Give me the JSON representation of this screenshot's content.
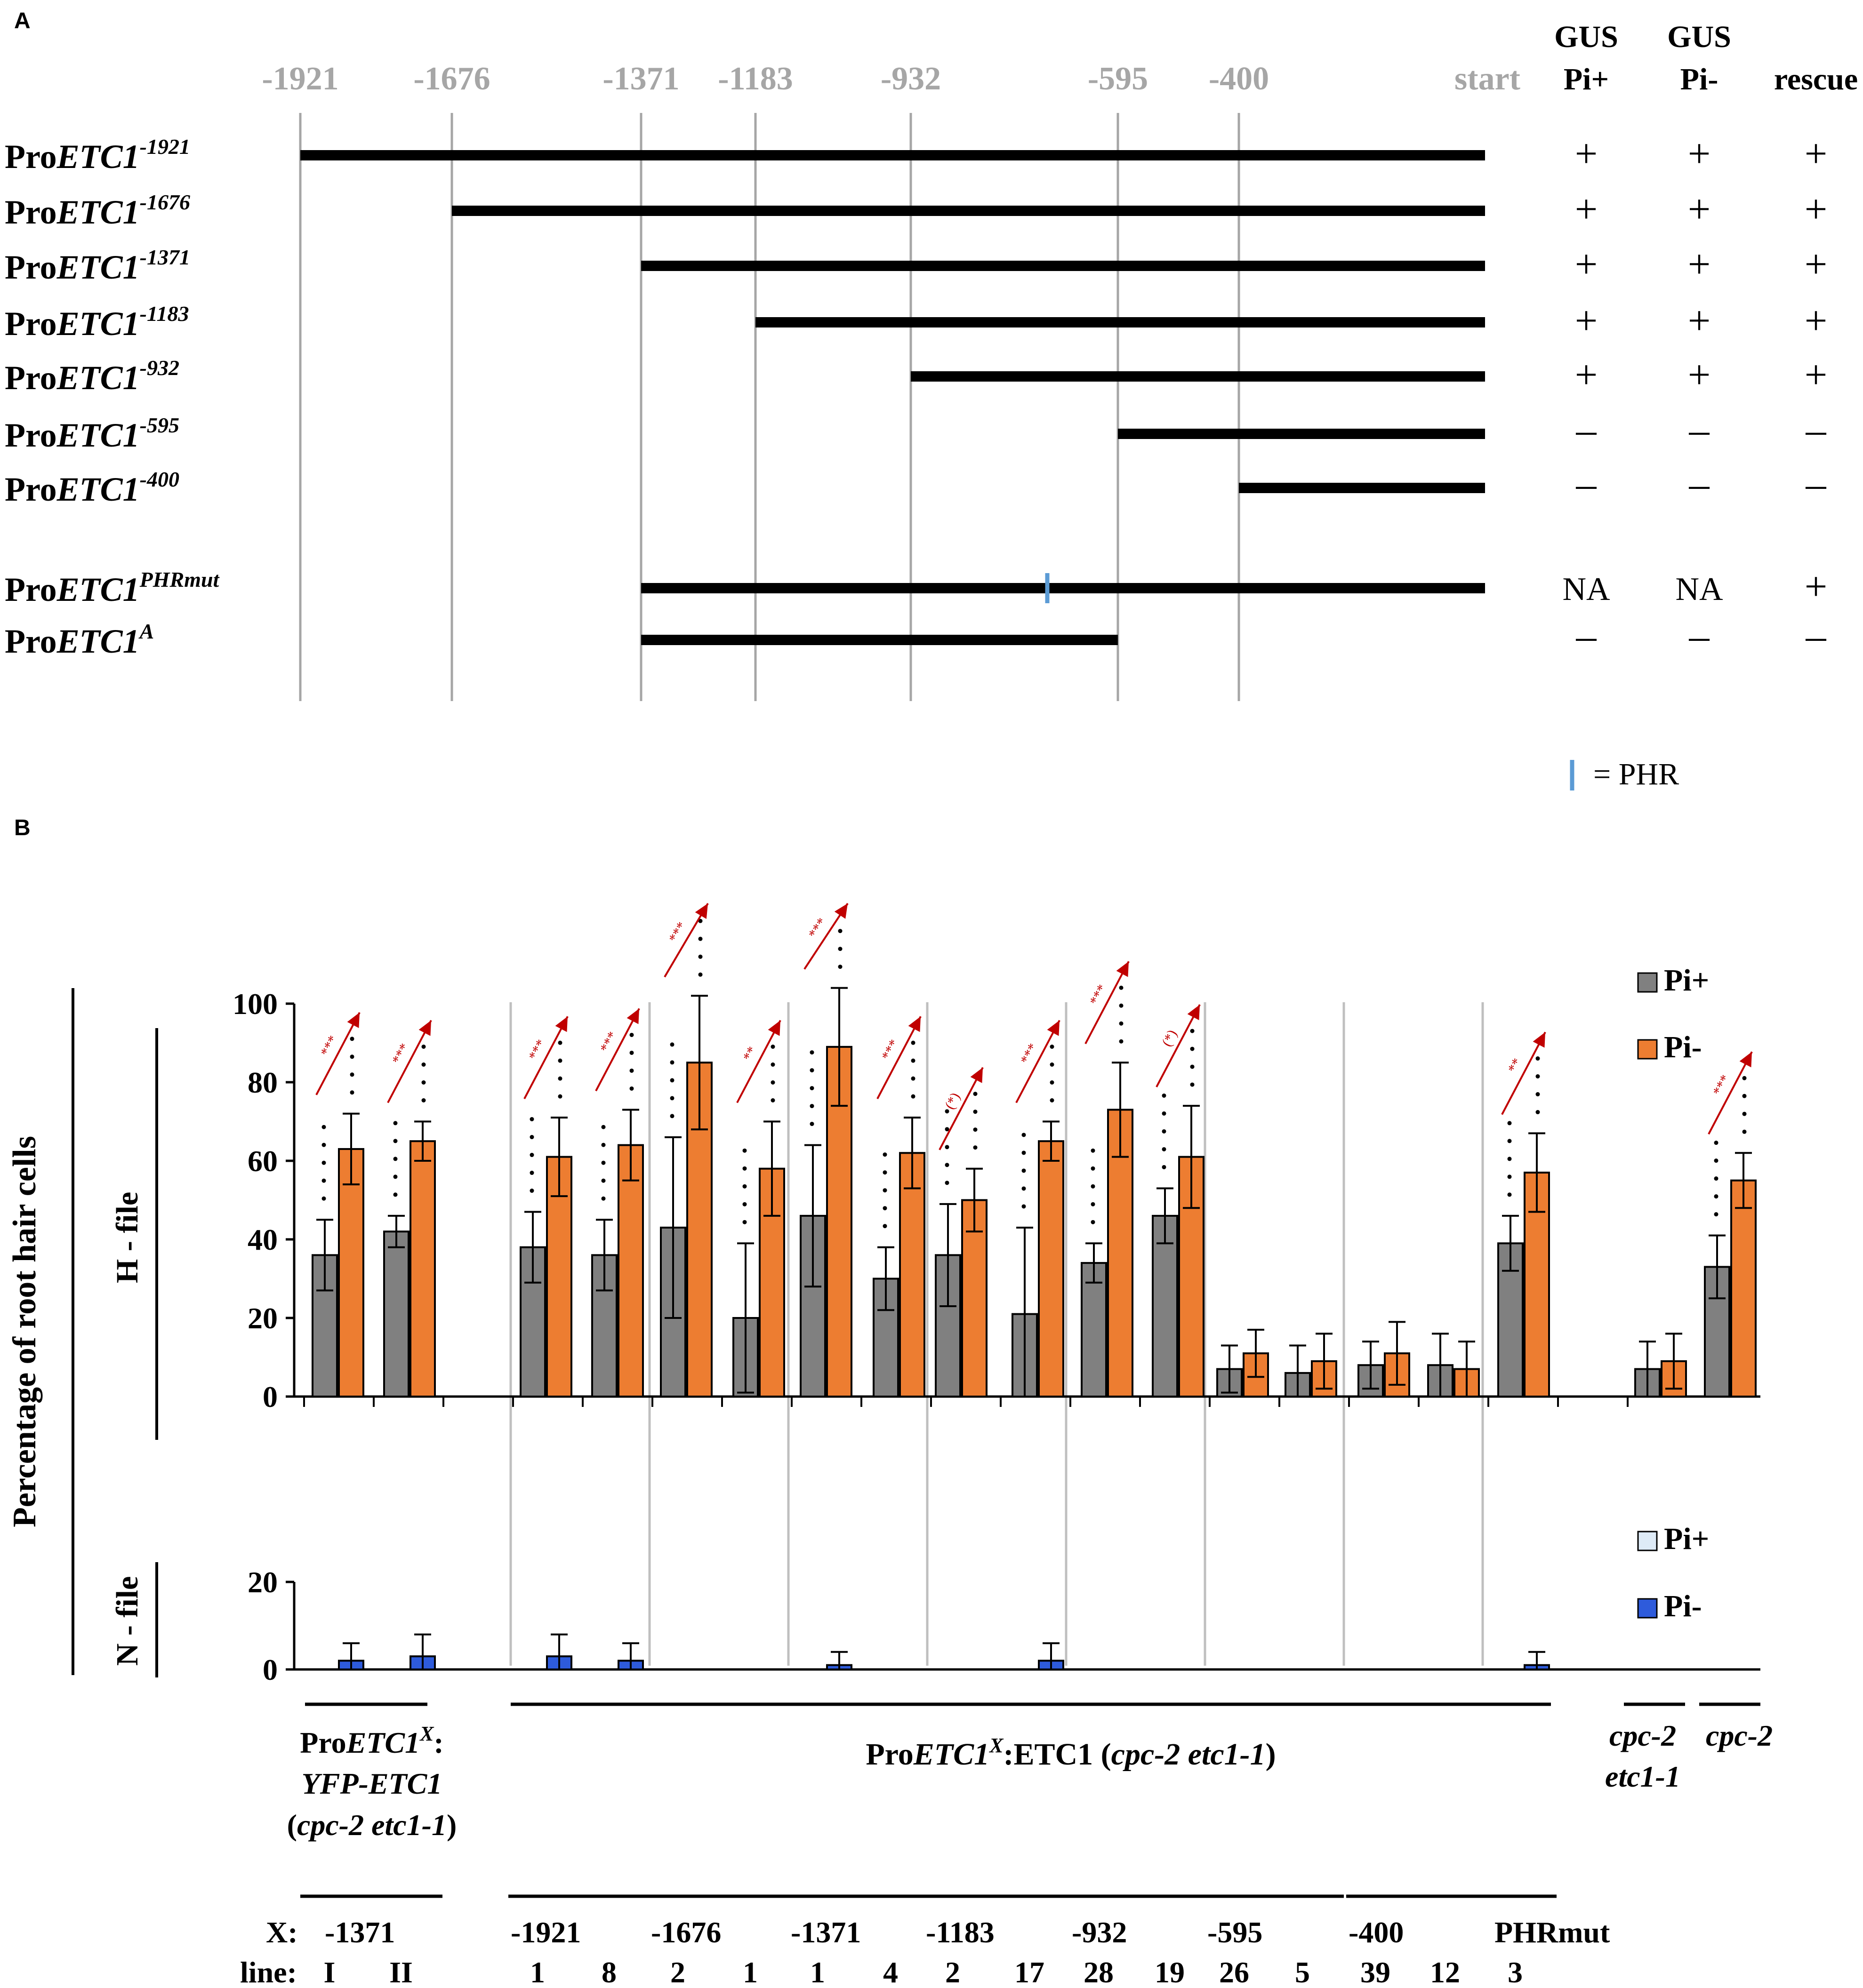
{
  "panel_a": {
    "label": "A",
    "positions": [
      {
        "label": "-1921",
        "value": -1921
      },
      {
        "label": "-1676",
        "value": -1676
      },
      {
        "label": "-1371",
        "value": -1371
      },
      {
        "label": "-1183",
        "value": -1183
      },
      {
        "label": "-932",
        "value": -932
      },
      {
        "label": "-595",
        "value": -595
      },
      {
        "label": "-400",
        "value": -400
      },
      {
        "label": "start",
        "value": 0
      }
    ],
    "columns": [
      {
        "line1": "GUS",
        "line2": "Pi+"
      },
      {
        "line1": "GUS",
        "line2": "Pi-"
      },
      {
        "line1": "",
        "line2": "rescue"
      }
    ],
    "constructs": [
      {
        "prefix": "Pro",
        "gene": "ETC1",
        "sup": "-1921",
        "from": -1921,
        "to": 0,
        "results": [
          "+",
          "+",
          "+"
        ]
      },
      {
        "prefix": "Pro",
        "gene": "ETC1",
        "sup": "-1676",
        "from": -1676,
        "to": 0,
        "results": [
          "+",
          "+",
          "+"
        ]
      },
      {
        "prefix": "Pro",
        "gene": "ETC1",
        "sup": "-1371",
        "from": -1371,
        "to": 0,
        "results": [
          "+",
          "+",
          "+"
        ]
      },
      {
        "prefix": "Pro",
        "gene": "ETC1",
        "sup": "-1183",
        "from": -1183,
        "to": 0,
        "results": [
          "+",
          "+",
          "+"
        ]
      },
      {
        "prefix": "Pro",
        "gene": "ETC1",
        "sup": "-932",
        "from": -932,
        "to": 0,
        "results": [
          "+",
          "+",
          "+"
        ]
      },
      {
        "prefix": "Pro",
        "gene": "ETC1",
        "sup": "-595",
        "from": -595,
        "to": 0,
        "results": [
          "-",
          "-",
          "-"
        ]
      },
      {
        "prefix": "Pro",
        "gene": "ETC1",
        "sup": "-400",
        "from": -400,
        "to": 0,
        "results": [
          "-",
          "-",
          "-"
        ]
      },
      {
        "prefix": "Pro",
        "gene": "ETC1",
        "sup": "PHRmut",
        "from": -1371,
        "to": 0,
        "phr_at": -800,
        "results": [
          "NA",
          "NA",
          "+"
        ]
      },
      {
        "prefix": "Pro",
        "gene": "ETC1",
        "sup": "A",
        "from": -1371,
        "to": -595,
        "results": [
          "-",
          "-",
          "-"
        ]
      }
    ],
    "phr_legend": "= PHR",
    "phr_color": "#5b9bd5"
  },
  "chart_data": {
    "type": "bar",
    "panel_label": "B",
    "ylabel": "Percentage of root hair cells",
    "top": {
      "label": "H - file",
      "ylim": [
        0,
        100
      ],
      "ticks": [
        0,
        20,
        40,
        60,
        80,
        100
      ],
      "series": [
        {
          "name": "Pi+",
          "color": "#808080",
          "values": [
            36,
            42,
            38,
            36,
            43,
            20,
            46,
            30,
            36,
            21,
            34,
            46,
            7,
            6,
            8,
            8,
            39,
            null,
            7,
            33
          ],
          "errors": [
            9,
            4,
            9,
            9,
            23,
            19,
            18,
            8,
            13,
            22,
            5,
            7,
            6,
            7,
            6,
            8,
            7,
            null,
            7,
            8
          ]
        },
        {
          "name": "Pi-",
          "color": "#ed7d31",
          "values": [
            63,
            65,
            61,
            64,
            85,
            58,
            89,
            62,
            50,
            65,
            73,
            61,
            11,
            9,
            11,
            7,
            57,
            null,
            9,
            55
          ],
          "errors": [
            9,
            5,
            10,
            9,
            17,
            12,
            15,
            9,
            8,
            5,
            12,
            13,
            6,
            7,
            8,
            7,
            10,
            null,
            7,
            7
          ]
        }
      ],
      "significance": [
        "***",
        "***",
        "***",
        "***",
        "***",
        "**",
        "***",
        "***",
        "(*)",
        "***",
        "***",
        "(*)",
        "",
        "",
        "",
        "",
        "**",
        "",
        "",
        "***"
      ]
    },
    "bottom": {
      "label": "N - file",
      "ylim": [
        0,
        20
      ],
      "ticks": [
        0,
        20
      ],
      "series": [
        {
          "name": "Pi+",
          "color": "#deebf7",
          "values": [
            0,
            0,
            0,
            0,
            0,
            0,
            0,
            0,
            0,
            0,
            0,
            0,
            0,
            0,
            0,
            0,
            0,
            null,
            0,
            0
          ],
          "errors": [
            0,
            0,
            0,
            0,
            0,
            0,
            0,
            0,
            0,
            0,
            0,
            0,
            0,
            0,
            0,
            0,
            0,
            null,
            0,
            0
          ]
        },
        {
          "name": "Pi-",
          "color": "#2e5bdb",
          "values": [
            2,
            3,
            3,
            2,
            0,
            0,
            1,
            0,
            0,
            2,
            0,
            0,
            0,
            0,
            0,
            0,
            1,
            null,
            0,
            0
          ],
          "errors": [
            4,
            5,
            5,
            4,
            0,
            0,
            3,
            0,
            0,
            4,
            0,
            0,
            0,
            0,
            0,
            0,
            3,
            null,
            0,
            0
          ]
        }
      ]
    },
    "categories": [
      "I",
      "II",
      "1",
      "8",
      "2",
      "1",
      "1",
      "4",
      "2",
      "17",
      "28",
      "19",
      "26",
      "5",
      "39",
      "12",
      "3",
      "",
      "",
      ""
    ],
    "x_label": "X:",
    "line_label": "line:",
    "x_groups": [
      {
        "label": "-1371",
        "lines": [
          "I",
          "II"
        ]
      },
      {
        "label": "-1921",
        "lines": [
          "1",
          "8"
        ]
      },
      {
        "label": "-1676",
        "lines": [
          "2",
          "1"
        ]
      },
      {
        "label": "-1371",
        "lines": [
          "1",
          "4"
        ]
      },
      {
        "label": "-1183",
        "lines": [
          "2",
          "17"
        ]
      },
      {
        "label": "-932",
        "lines": [
          "28",
          "19"
        ]
      },
      {
        "label": "-595",
        "lines": [
          "26",
          "5"
        ]
      },
      {
        "label": "-400",
        "lines": [
          "39",
          "12"
        ]
      },
      {
        "label": "PHRmut",
        "lines": [
          "3"
        ]
      }
    ],
    "genotypes": {
      "yfp": {
        "pre": "Pro",
        "gene": "ETC1",
        "sup": "X",
        "line2": "YFP-ETC1",
        "line3": "cpc-2 etc1-1"
      },
      "main": {
        "pre": "Pro",
        "gene": "ETC1",
        "sup": "X",
        "rest": ":ETC1 (",
        "geno": "cpc-2 etc1-1",
        "close": ")"
      },
      "double": {
        "line1": "cpc-2",
        "line2": "etc1-1"
      },
      "single": "cpc-2"
    }
  }
}
